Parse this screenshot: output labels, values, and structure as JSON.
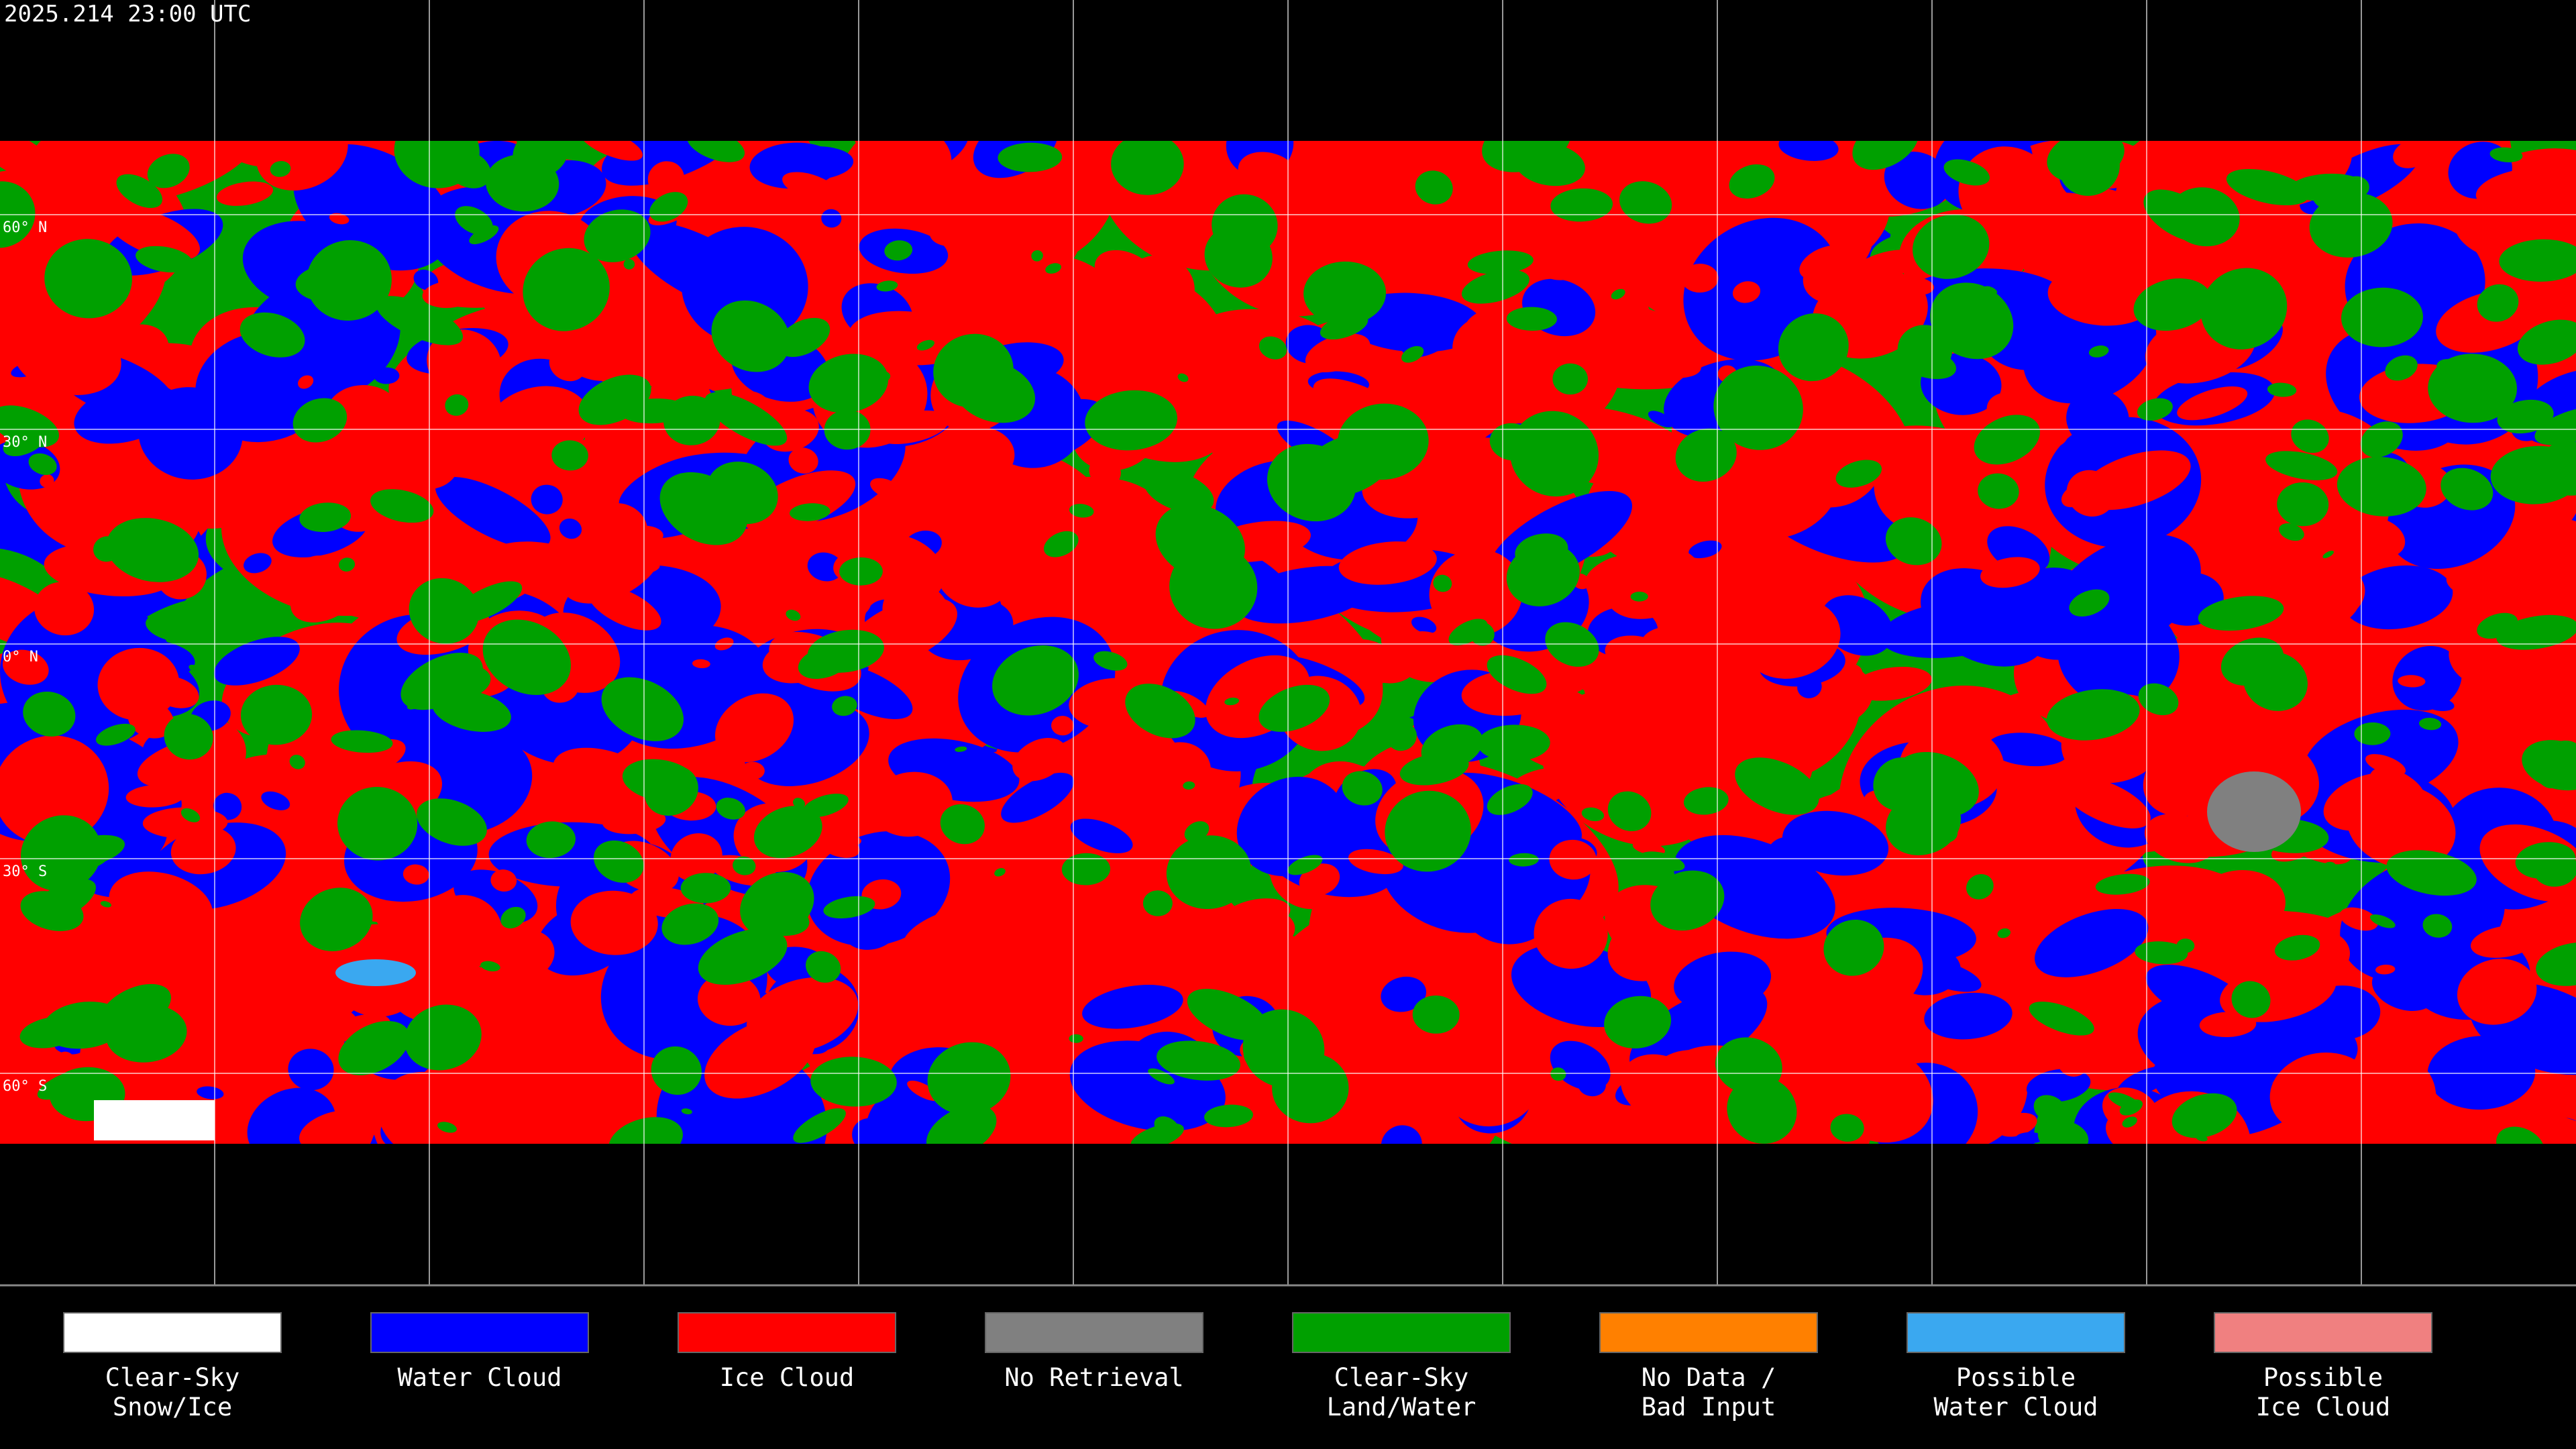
{
  "header": {
    "timestamp": "2025.214 23:00 UTC"
  },
  "map": {
    "latitude_labels": [
      "60° N",
      "30° N",
      "0° N",
      "30° S",
      "60° S"
    ]
  },
  "legend": {
    "items": [
      {
        "lines": [
          "Clear-Sky",
          "Snow/Ice"
        ],
        "color": "#ffffff"
      },
      {
        "lines": [
          "Water Cloud"
        ],
        "color": "#0000ff"
      },
      {
        "lines": [
          "Ice Cloud"
        ],
        "color": "#ff0000"
      },
      {
        "lines": [
          "No Retrieval"
        ],
        "color": "#808080"
      },
      {
        "lines": [
          "Clear-Sky",
          "Land/Water"
        ],
        "color": "#00a000"
      },
      {
        "lines": [
          "No Data /",
          "Bad Input"
        ],
        "color": "#ff8000"
      },
      {
        "lines": [
          "Possible",
          "Water Cloud"
        ],
        "color": "#3aa8f0"
      },
      {
        "lines": [
          "Possible",
          "Ice Cloud"
        ],
        "color": "#f08080"
      }
    ]
  }
}
